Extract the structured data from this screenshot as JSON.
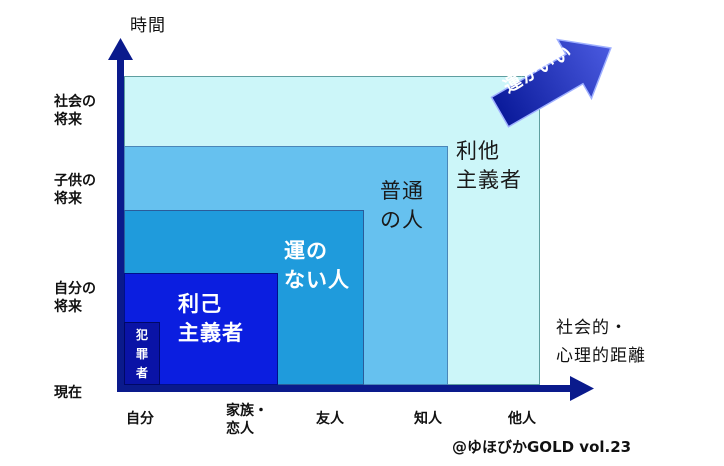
{
  "y_axis": {
    "title": "時間",
    "ticks": [
      "現在",
      "自分の\n将来",
      "子供の\n将来",
      "社会の\n将来"
    ]
  },
  "x_axis": {
    "title": "社会的・\n心理的距離",
    "ticks": [
      "自分",
      "家族・\n恋人",
      "友人",
      "知人",
      "他人"
    ]
  },
  "regions": [
    {
      "label": "利他\n主義者",
      "color": "#ccf6f9"
    },
    {
      "label": "普通\nの人",
      "color": "#66c1ef"
    },
    {
      "label": "運の\nない人",
      "color": "#1f9bdc"
    },
    {
      "label": "利己\n主義者",
      "color": "#0b1ee0"
    },
    {
      "label": "犯\n罪\n者",
      "color": "#0a13a6"
    }
  ],
  "arrow_label": "運がいい",
  "credit": "@ゆほびかGOLD vol.23",
  "colors": {
    "axis": "#0a1a8c",
    "arrow": "#2636b8"
  }
}
